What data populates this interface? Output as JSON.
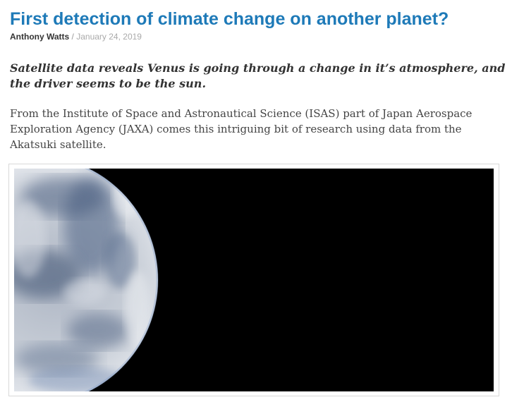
{
  "article": {
    "title": "First detection of climate change on another planet?",
    "author": "Anthony Watts",
    "separator": " / ",
    "date": "January 24, 2019",
    "lede": "Satellite data reveals Venus is going through a change in it’s atmosphere, and the driver seems to be the sun.",
    "paragraph": "From  the Institute of Space and Astronautical Science (ISAS)  part of Japan Aerospace Exploration Agency (JAXA) comes this intriguing bit of research using data from the Akatsuki satellite."
  },
  "colors": {
    "title": "#1e7ab8",
    "image_background": "#000000"
  }
}
